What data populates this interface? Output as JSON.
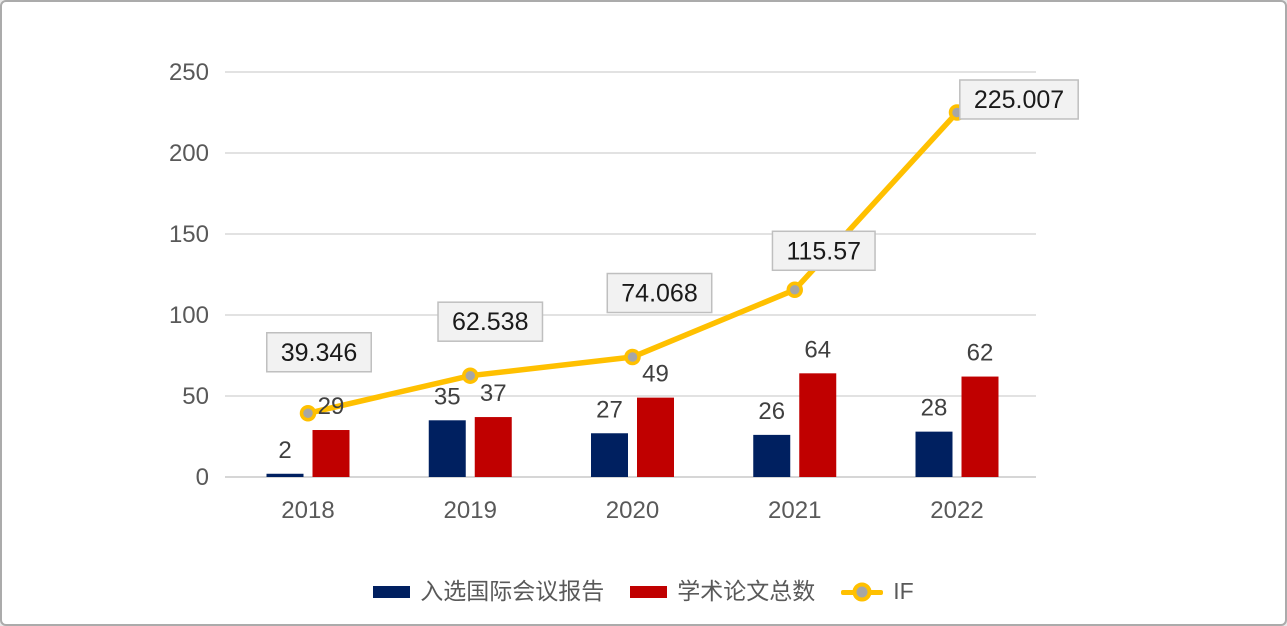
{
  "frame": {
    "background": "#FFFFFF",
    "border_color": "#ABABAB"
  },
  "chart_data": {
    "type": "combo",
    "title": "",
    "categories": [
      "2018",
      "2019",
      "2020",
      "2021",
      "2022"
    ],
    "series": [
      {
        "name": "入选国际会议报告",
        "type": "bar",
        "color": "#002060",
        "values": [
          2,
          35,
          27,
          26,
          28
        ],
        "value_labels": [
          "2",
          "35",
          "27",
          "26",
          "28"
        ]
      },
      {
        "name": "学术论文总数",
        "type": "bar",
        "color": "#C00000",
        "values": [
          29,
          37,
          49,
          64,
          62
        ],
        "value_labels": [
          "29",
          "37",
          "49",
          "64",
          "62"
        ]
      },
      {
        "name": "IF",
        "type": "line",
        "color": "#FFC000",
        "marker_color": "#A6A6A6",
        "values": [
          39.346,
          62.538,
          74.068,
          115.57,
          225.007
        ],
        "value_labels": [
          "39.346",
          "62.538",
          "74.068",
          "115.57",
          "225.007"
        ],
        "label_box": {
          "fill": "#F2F2F2",
          "border": "#BFBFBF",
          "text_color": "#1A1A1A"
        }
      }
    ],
    "y_axis": {
      "min": 0,
      "max": 250,
      "step": 50,
      "tick_labels": [
        "0",
        "50",
        "100",
        "150",
        "200",
        "250"
      ]
    },
    "x_axis": {
      "labels": [
        "2018",
        "2019",
        "2020",
        "2021",
        "2022"
      ]
    },
    "grid": true,
    "gridline_color": "#D9D9D9",
    "axis_line_color": "#C9C9C9",
    "axis_text_color": "#595959",
    "value_label_color": "#404040",
    "legend_position": "bottom"
  }
}
